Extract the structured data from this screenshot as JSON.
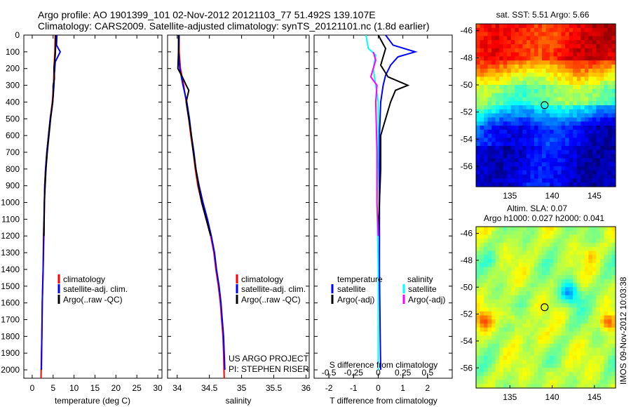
{
  "header": {
    "line1": "Argo profile: AO 1901399_101 02-Nov-2012 20121103_77 51.492S 139.107E",
    "line2": "Climatology: CARS2009. Satellite-adjusted climatology: synTS_20121101.nc (1.8d earlier)"
  },
  "credits": {
    "project": "US ARGO PROJECT",
    "pi": "PI: STEPHEN RISER",
    "side": "IMOS 09-Nov-2012 10:03:38"
  },
  "colors": {
    "climatology": "#ff0000",
    "satellite": "#0000ff",
    "argo": "#000000",
    "sal_satellite": "#00ffff",
    "sal_argo": "#ff00ff"
  },
  "chart_data": [
    {
      "id": "temperature",
      "type": "line",
      "xlabel": "temperature (deg C)",
      "xlim": [
        -2,
        31
      ],
      "ylim": [
        0,
        2050
      ],
      "yticks": [
        0,
        100,
        200,
        300,
        400,
        500,
        600,
        700,
        800,
        900,
        1000,
        1100,
        1200,
        1300,
        1400,
        1500,
        1600,
        1700,
        1800,
        1900,
        2000
      ],
      "xticks": [
        0,
        5,
        10,
        15,
        20,
        25,
        30
      ],
      "xtick_labels": [
        "0",
        "5",
        "10",
        "15",
        "20",
        "25",
        "30"
      ],
      "legend": [
        "climatology",
        "satellite-adj. clim.",
        "Argo(..raw -QC)"
      ],
      "series": [
        {
          "name": "climatology",
          "color": "#ff0000",
          "points": [
            [
              5.5,
              0
            ],
            [
              5.4,
              100
            ],
            [
              5.2,
              200
            ],
            [
              5.1,
              300
            ],
            [
              4.8,
              400
            ],
            [
              4.3,
              500
            ],
            [
              3.9,
              600
            ],
            [
              3.5,
              700
            ],
            [
              3.2,
              800
            ],
            [
              3.0,
              900
            ],
            [
              2.9,
              1000
            ],
            [
              2.8,
              1200
            ],
            [
              2.6,
              1400
            ],
            [
              2.4,
              1600
            ],
            [
              2.3,
              1800
            ],
            [
              2.2,
              1900
            ],
            [
              2.1,
              2050
            ]
          ]
        },
        {
          "name": "satellite-adj. clim.",
          "color": "#0000ff",
          "points": [
            [
              5.9,
              0
            ],
            [
              5.8,
              60
            ],
            [
              6.7,
              100
            ],
            [
              5.5,
              160
            ],
            [
              5.3,
              230
            ],
            [
              5.2,
              300
            ],
            [
              4.9,
              400
            ],
            [
              4.3,
              500
            ],
            [
              3.9,
              600
            ],
            [
              3.5,
              700
            ],
            [
              3.2,
              800
            ],
            [
              3.0,
              900
            ],
            [
              2.9,
              1000
            ],
            [
              2.7,
              1200
            ],
            [
              2.6,
              1400
            ],
            [
              2.4,
              1600
            ],
            [
              2.3,
              1800
            ],
            [
              2.2,
              2000
            ]
          ]
        },
        {
          "name": "Argo(..raw -QC)",
          "color": "#000000",
          "points": [
            [
              5.6,
              0
            ],
            [
              5.6,
              60
            ],
            [
              5.5,
              120
            ],
            [
              5.2,
              200
            ],
            [
              5.3,
              260
            ],
            [
              5.0,
              300
            ],
            [
              5.0,
              360
            ],
            [
              4.9,
              400
            ],
            [
              4.4,
              500
            ],
            [
              4.0,
              600
            ],
            [
              3.6,
              700
            ],
            [
              3.3,
              800
            ],
            [
              3.1,
              900
            ],
            [
              2.9,
              1000
            ],
            [
              2.8,
              1200
            ]
          ]
        }
      ]
    },
    {
      "id": "salinity",
      "type": "line",
      "xlabel": "salinity",
      "xlim": [
        33.85,
        36.05
      ],
      "ylim": [
        0,
        2050
      ],
      "xticks": [
        34,
        34.5,
        35,
        35.5,
        36
      ],
      "xtick_labels": [
        "34",
        "34.5",
        "35",
        "35.5",
        "36"
      ],
      "legend": [
        "climatology",
        "satellite-adj. clim.",
        "Argo(..raw -QC)"
      ],
      "series": [
        {
          "name": "climatology",
          "color": "#ff0000",
          "points": [
            [
              34.03,
              0
            ],
            [
              34.03,
              100
            ],
            [
              34.05,
              200
            ],
            [
              34.1,
              300
            ],
            [
              34.14,
              400
            ],
            [
              34.18,
              500
            ],
            [
              34.21,
              600
            ],
            [
              34.25,
              700
            ],
            [
              34.28,
              800
            ],
            [
              34.32,
              900
            ],
            [
              34.38,
              1000
            ],
            [
              34.45,
              1100
            ],
            [
              34.52,
              1200
            ],
            [
              34.57,
              1300
            ],
            [
              34.6,
              1400
            ],
            [
              34.64,
              1500
            ],
            [
              34.67,
              1600
            ],
            [
              34.69,
              1700
            ],
            [
              34.71,
              1800
            ],
            [
              34.72,
              1900
            ],
            [
              34.73,
              2050
            ]
          ]
        },
        {
          "name": "satellite-adj. clim.",
          "color": "#0000ff",
          "points": [
            [
              34.03,
              0
            ],
            [
              34.02,
              100
            ],
            [
              34.04,
              200
            ],
            [
              34.09,
              300
            ],
            [
              34.15,
              400
            ],
            [
              34.19,
              500
            ],
            [
              34.22,
              600
            ],
            [
              34.26,
              700
            ],
            [
              34.29,
              800
            ],
            [
              34.34,
              900
            ],
            [
              34.4,
              1000
            ],
            [
              34.47,
              1100
            ],
            [
              34.53,
              1200
            ],
            [
              34.58,
              1300
            ],
            [
              34.61,
              1400
            ],
            [
              34.65,
              1500
            ],
            [
              34.68,
              1600
            ],
            [
              34.7,
              1700
            ],
            [
              34.72,
              1800
            ],
            [
              34.73,
              1900
            ],
            [
              34.74,
              2000
            ]
          ]
        },
        {
          "name": "Argo(..raw -QC)",
          "color": "#000000",
          "points": [
            [
              34.02,
              0
            ],
            [
              34.02,
              100
            ],
            [
              34.01,
              200
            ],
            [
              34.08,
              250
            ],
            [
              34.14,
              300
            ],
            [
              34.18,
              330
            ],
            [
              34.14,
              400
            ],
            [
              34.18,
              500
            ],
            [
              34.22,
              600
            ],
            [
              34.25,
              700
            ],
            [
              34.29,
              800
            ],
            [
              34.33,
              900
            ],
            [
              34.38,
              1000
            ],
            [
              34.45,
              1100
            ],
            [
              34.52,
              1200
            ]
          ]
        }
      ]
    },
    {
      "id": "difference",
      "type": "line",
      "xlabel": "T difference from climatology",
      "xlabel_top": "S difference from climatology",
      "xlim": [
        -2.6,
        3.0
      ],
      "ylim": [
        0,
        2050
      ],
      "xticks": [
        -2,
        -1,
        0,
        1,
        2
      ],
      "xtick_labels": [
        "-2",
        "-1",
        "0",
        "1",
        "2"
      ],
      "top_ticks": [
        -0.5,
        -0.25,
        0,
        0.25,
        0.5
      ],
      "top_tick_labels": [
        "-0.5",
        "-0.25",
        "0",
        "0.25",
        "0.5"
      ],
      "legend": {
        "temperature_header": "temperature",
        "salinity_header": "salinity",
        "temperature": [
          "satellite",
          "Argo(-adj)"
        ],
        "salinity": [
          "satellite",
          "Argo(-adj)"
        ]
      },
      "series": [
        {
          "name": "satellite",
          "color": "#0000ff",
          "points": [
            [
              0.3,
              0
            ],
            [
              0.6,
              60
            ],
            [
              1.5,
              100
            ],
            [
              0.8,
              130
            ],
            [
              0.5,
              180
            ],
            [
              0.3,
              240
            ],
            [
              0.2,
              300
            ],
            [
              0.1,
              400
            ],
            [
              0.05,
              600
            ],
            [
              0.05,
              1000
            ],
            [
              0.05,
              1400
            ],
            [
              0.08,
              1800
            ],
            [
              0.1,
              2000
            ]
          ]
        },
        {
          "name": "Argo(-adj)",
          "color": "#000000",
          "points": [
            [
              0.0,
              0
            ],
            [
              0.3,
              80
            ],
            [
              0.1,
              180
            ],
            [
              0.4,
              250
            ],
            [
              1.2,
              300
            ],
            [
              0.7,
              330
            ],
            [
              0.5,
              400
            ],
            [
              0.3,
              500
            ],
            [
              0.1,
              600
            ],
            [
              0.1,
              800
            ],
            [
              0.05,
              1000
            ],
            [
              0.0,
              1200
            ]
          ]
        },
        {
          "name": "satellite",
          "color": "#00ffff",
          "points": [
            [
              -0.5,
              0
            ],
            [
              -0.4,
              80
            ],
            [
              -0.1,
              120
            ],
            [
              -0.2,
              200
            ],
            [
              -0.1,
              300
            ],
            [
              0.0,
              400
            ],
            [
              0.0,
              700
            ],
            [
              -0.05,
              1000
            ],
            [
              0.0,
              1400
            ],
            [
              0.0,
              1800
            ],
            [
              0.0,
              2000
            ]
          ]
        },
        {
          "name": "Argo(-adj)",
          "color": "#ff00ff",
          "points": [
            [
              -0.2,
              100
            ],
            [
              -0.1,
              150
            ],
            [
              -0.3,
              250
            ],
            [
              -0.05,
              300
            ],
            [
              -0.1,
              400
            ],
            [
              -0.05,
              700
            ],
            [
              -0.05,
              1000
            ],
            [
              0.0,
              1200
            ]
          ]
        }
      ]
    },
    {
      "id": "sst_map",
      "type": "heatmap",
      "title": "sat. SST: 5.51 Argo: 5.66",
      "xlim": [
        131,
        147.5
      ],
      "ylim": [
        -57.5,
        -45.5
      ],
      "xticks": [
        135,
        140,
        145
      ],
      "yticks": [
        -46,
        -48,
        -50,
        -52,
        -54,
        -56
      ],
      "xtick_labels": [
        "135",
        "140",
        "145"
      ],
      "ytick_labels": [
        "-46",
        "-48",
        "-50",
        "-52",
        "-54",
        "-56"
      ],
      "marker": [
        139.107,
        -51.492
      ]
    },
    {
      "id": "sla_map",
      "type": "heatmap",
      "title": "Altim. SLA: 0.07",
      "subtitle": "Argo h1000: 0.027 h2000: 0.041",
      "xlim": [
        131,
        147.5
      ],
      "ylim": [
        -57.5,
        -45.5
      ],
      "xticks": [
        135,
        140,
        145
      ],
      "yticks": [
        -46,
        -48,
        -50,
        -52,
        -54,
        -56
      ],
      "xtick_labels": [
        "135",
        "140",
        "145"
      ],
      "ytick_labels": [
        "-46",
        "-48",
        "-50",
        "-52",
        "-54",
        "-56"
      ],
      "marker": [
        139.107,
        -51.492
      ]
    }
  ]
}
